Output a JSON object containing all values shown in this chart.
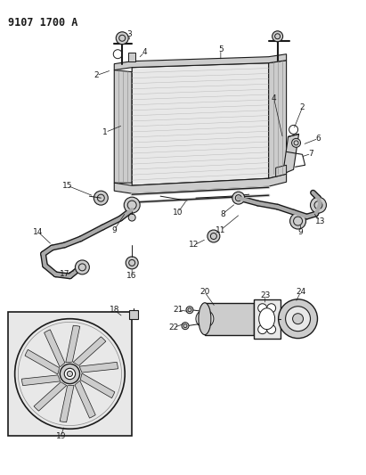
{
  "title": "9107 1700 A",
  "bg_color": "#ffffff",
  "fig_width": 4.11,
  "fig_height": 5.33,
  "dpi": 100,
  "dark": "#1a1a1a",
  "gray": "#888888",
  "lgray": "#cccccc",
  "vlgray": "#e8e8e8"
}
